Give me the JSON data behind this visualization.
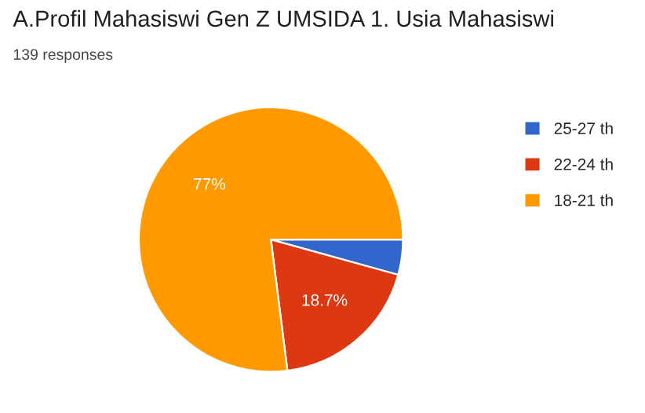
{
  "chart_data": {
    "type": "pie",
    "title": "A.Profil Mahasiswi Gen Z UMSIDA 1. Usia Mahasiswi",
    "subtitle": "139 responses",
    "categories": [
      "25-27 th",
      "22-24 th",
      "18-21 th"
    ],
    "values": [
      4.3,
      18.7,
      77
    ],
    "colors": [
      "#3366cc",
      "#dc3912",
      "#ff9900"
    ],
    "value_labels": [
      null,
      "18.7%",
      "77%"
    ],
    "legend": "right"
  }
}
